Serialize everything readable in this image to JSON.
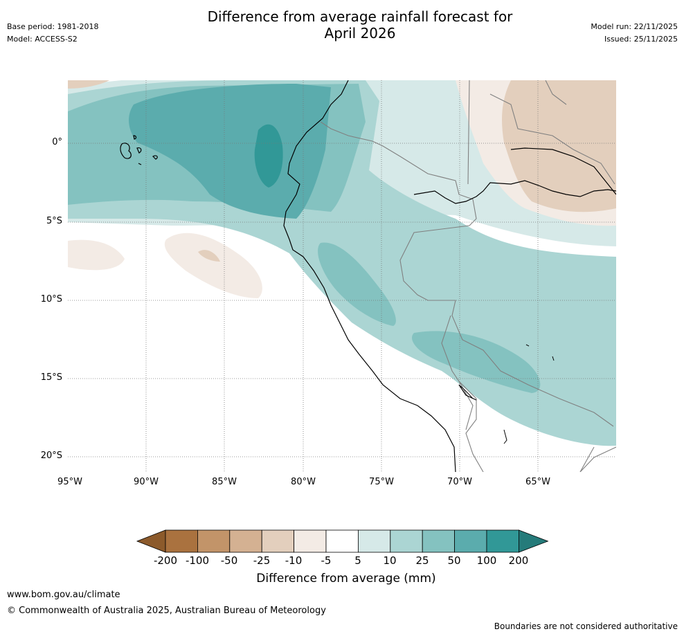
{
  "title": {
    "line1": "Difference from average rainfall forecast for",
    "line2": "April 2026"
  },
  "meta_left": {
    "base_period": "Base period: 1981-2018",
    "model": "Model: ACCESS-S2"
  },
  "meta_right": {
    "model_run": "Model run: 22/11/2025",
    "issued": "Issued: 25/11/2025"
  },
  "map": {
    "region": "Western South America and Eastern Pacific",
    "lat_labels": [
      "0°",
      "5°S",
      "10°S",
      "15°S",
      "20°S"
    ],
    "lon_labels": [
      "95°W",
      "90°W",
      "85°W",
      "80°W",
      "75°W",
      "70°W",
      "65°W"
    ]
  },
  "colorbar": {
    "title": "Difference from average (mm)",
    "tick_labels": [
      "-200",
      "-100",
      "-50",
      "-25",
      "-10",
      "-5",
      "5",
      "10",
      "25",
      "50",
      "100",
      "200"
    ],
    "colors": [
      "#8c5a2b",
      "#aa723f",
      "#c29469",
      "#d4b192",
      "#e3cfbd",
      "#f3ebe5",
      "#ffffff",
      "#d6e9e8",
      "#abd5d3",
      "#84c2c0",
      "#5bacad",
      "#319897",
      "#257b7a"
    ]
  },
  "footer": {
    "url": "www.bom.gov.au/climate",
    "copyright": "© Commonwealth of Australia 2025, Australian Bureau of Meteorology",
    "note": "Boundaries are not considered authoritative"
  }
}
